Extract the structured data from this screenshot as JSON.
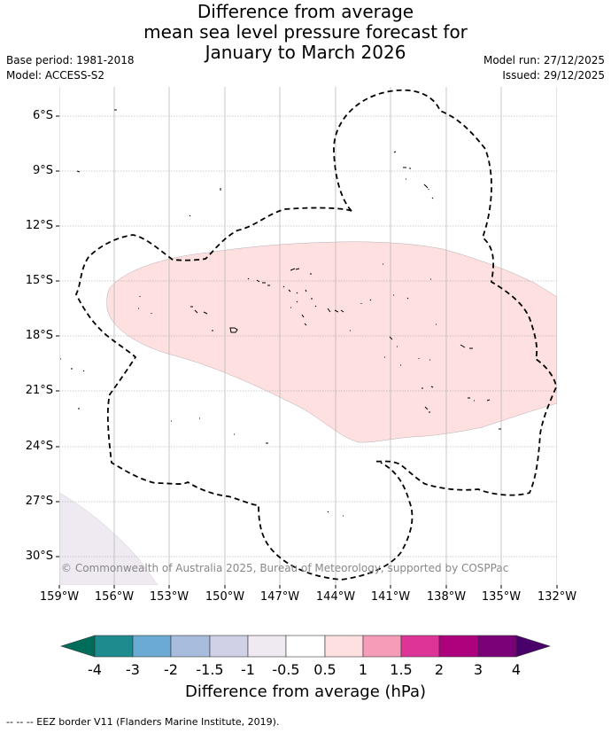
{
  "title": {
    "line1": "Difference from average",
    "line2": "mean sea level pressure forecast for",
    "line3": "January to March 2026"
  },
  "meta": {
    "base_period": "Base period: 1981-2018",
    "model": "Model: ACCESS-S2",
    "model_run": "Model run: 27/12/2025",
    "issued": "Issued: 29/12/2025"
  },
  "map": {
    "lat_labels": [
      "6°S",
      "9°S",
      "12°S",
      "15°S",
      "18°S",
      "21°S",
      "24°S",
      "27°S",
      "30°S"
    ],
    "lon_labels": [
      "159°W",
      "156°W",
      "153°W",
      "150°W",
      "147°W",
      "144°W",
      "141°W",
      "138°W",
      "135°W",
      "132°W"
    ],
    "copyright": "© Commonwealth of Australia 2025, Bureau of Meteorology, supported by COSPPac",
    "positive_anomaly_color": "#fde0df",
    "negative_anomaly_color": "#efeaf2"
  },
  "colorbar": {
    "title": "Difference from average (hPa)",
    "labels": [
      "-4",
      "-3",
      "-2",
      "-1.5",
      "-1",
      "-0.5",
      "0.5",
      "1",
      "1.5",
      "2",
      "3",
      "4"
    ],
    "colors": [
      "#1e8c8f",
      "#6aaad3",
      "#a8bcdd",
      "#d0d1e6",
      "#efeaf2",
      "#ffffff",
      "#fde0df",
      "#f79cb8",
      "#dd3498",
      "#ae017e",
      "#7a0177"
    ],
    "under_color": "#006d5b",
    "over_color": "#49006a"
  },
  "footer": "--  --  -- EEZ border V11 (Flanders Marine Institute, 2019)."
}
